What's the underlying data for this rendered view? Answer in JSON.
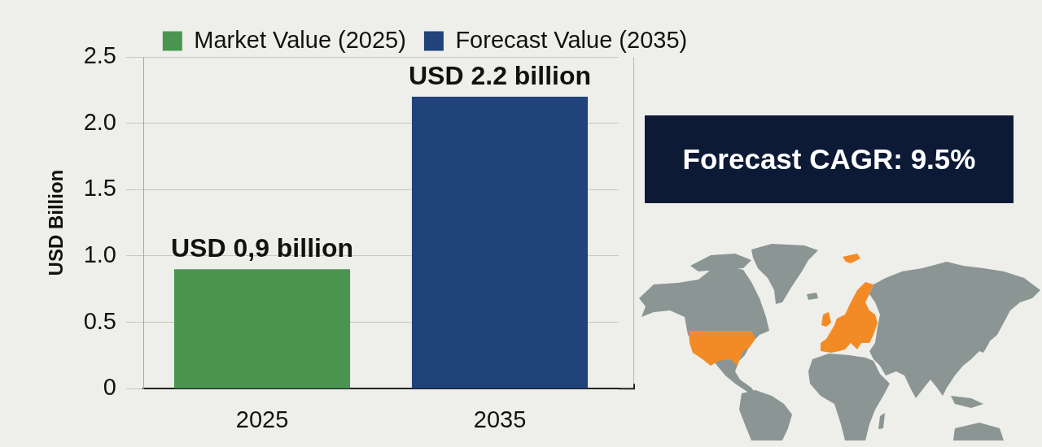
{
  "chart_data": {
    "type": "bar",
    "ylabel": "USD Billion",
    "categories": [
      "2025",
      "2035"
    ],
    "series": [
      {
        "name": "Market Value (2025)",
        "color": "#4a9550",
        "values": [
          0.9,
          null
        ],
        "value_labels": [
          "USD 0,9 billion",
          null
        ]
      },
      {
        "name": "Forecast Value (2035)",
        "color": "#1f437a",
        "values": [
          null,
          2.2
        ],
        "value_labels": [
          null,
          "USD 2.2 billion"
        ]
      }
    ],
    "ylim": [
      0,
      2.5
    ],
    "yticks": [
      0,
      0.5,
      {
        "value": 1,
        "label": "1.0"
      },
      1.5,
      {
        "value": 2,
        "label": "2.0"
      },
      2.5
    ],
    "grid": "y",
    "legend": "top",
    "annotations": [
      "Forecast CAGR: 9.5%"
    ]
  }
}
